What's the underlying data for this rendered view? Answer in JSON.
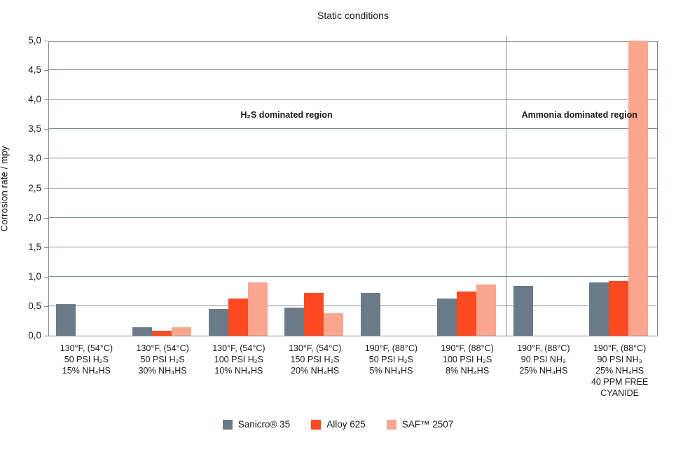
{
  "chart_data": {
    "type": "bar",
    "title": "Static conditions",
    "ylabel": "Corrosion rate / mpy",
    "xlabel": "",
    "ylim": [
      0,
      5
    ],
    "ytick_step": 0.5,
    "ytick_labels": [
      "0,0",
      "0,5",
      "1,0",
      "1,5",
      "2,0",
      "2,5",
      "3,0",
      "3,5",
      "4,0",
      "4,5",
      "5,0"
    ],
    "decimal_separator": ",",
    "grid": true,
    "legend_position": "bottom",
    "regions": {
      "h2s": "H₂S dominated region",
      "ammonia": "Ammonia dominated region",
      "divider_after_category_index": 6
    },
    "categories": [
      [
        "130°F, (54°C)",
        "50 PSI H₂S",
        "15% NH₄HS"
      ],
      [
        "130°F, (54°C)",
        "50 PSI H₂S",
        "30% NH₄HS"
      ],
      [
        "130°F, (54°C)",
        "100 PSI H₂S",
        "10% NH₄HS"
      ],
      [
        "130°F, (54°C)",
        "150 PSI H₂S",
        "20% NH₄HS"
      ],
      [
        "190°F, (88°C)",
        "50 PSI H₂S",
        "5% NH₄HS"
      ],
      [
        "190°F, (88°C)",
        "100 PSI H₂S",
        "8% NH₄HS"
      ],
      [
        "190°F, (88°C)",
        "90 PSI NH₃",
        "25% NH₄HS"
      ],
      [
        "190°F, (88°C)",
        "90 PSI NH₃",
        "25% NH₄HS",
        "40 PPM FREE",
        "CYANIDE"
      ]
    ],
    "series": [
      {
        "name": "Sanicro® 35",
        "color": "#6b7a87",
        "values": [
          0.54,
          0.14,
          0.45,
          0.48,
          0.72,
          0.63,
          0.84,
          0.9
        ]
      },
      {
        "name": "Alloy 625",
        "color": "#fb4a22",
        "values": [
          0,
          0.08,
          0.63,
          0.72,
          0,
          0.75,
          0,
          0.93
        ]
      },
      {
        "name": "SAF™ 2507",
        "color": "#faa58e",
        "values": [
          0,
          0.14,
          0.9,
          0.38,
          0,
          0.87,
          0,
          5.0
        ]
      }
    ],
    "note": "SAF™ 2507 bar in the last category reaches the top of the axis (≥ 5,0, clipped)"
  },
  "colors": {
    "axis": "#7e8a94",
    "text": "#1a1a1a",
    "background": "#ffffff"
  }
}
